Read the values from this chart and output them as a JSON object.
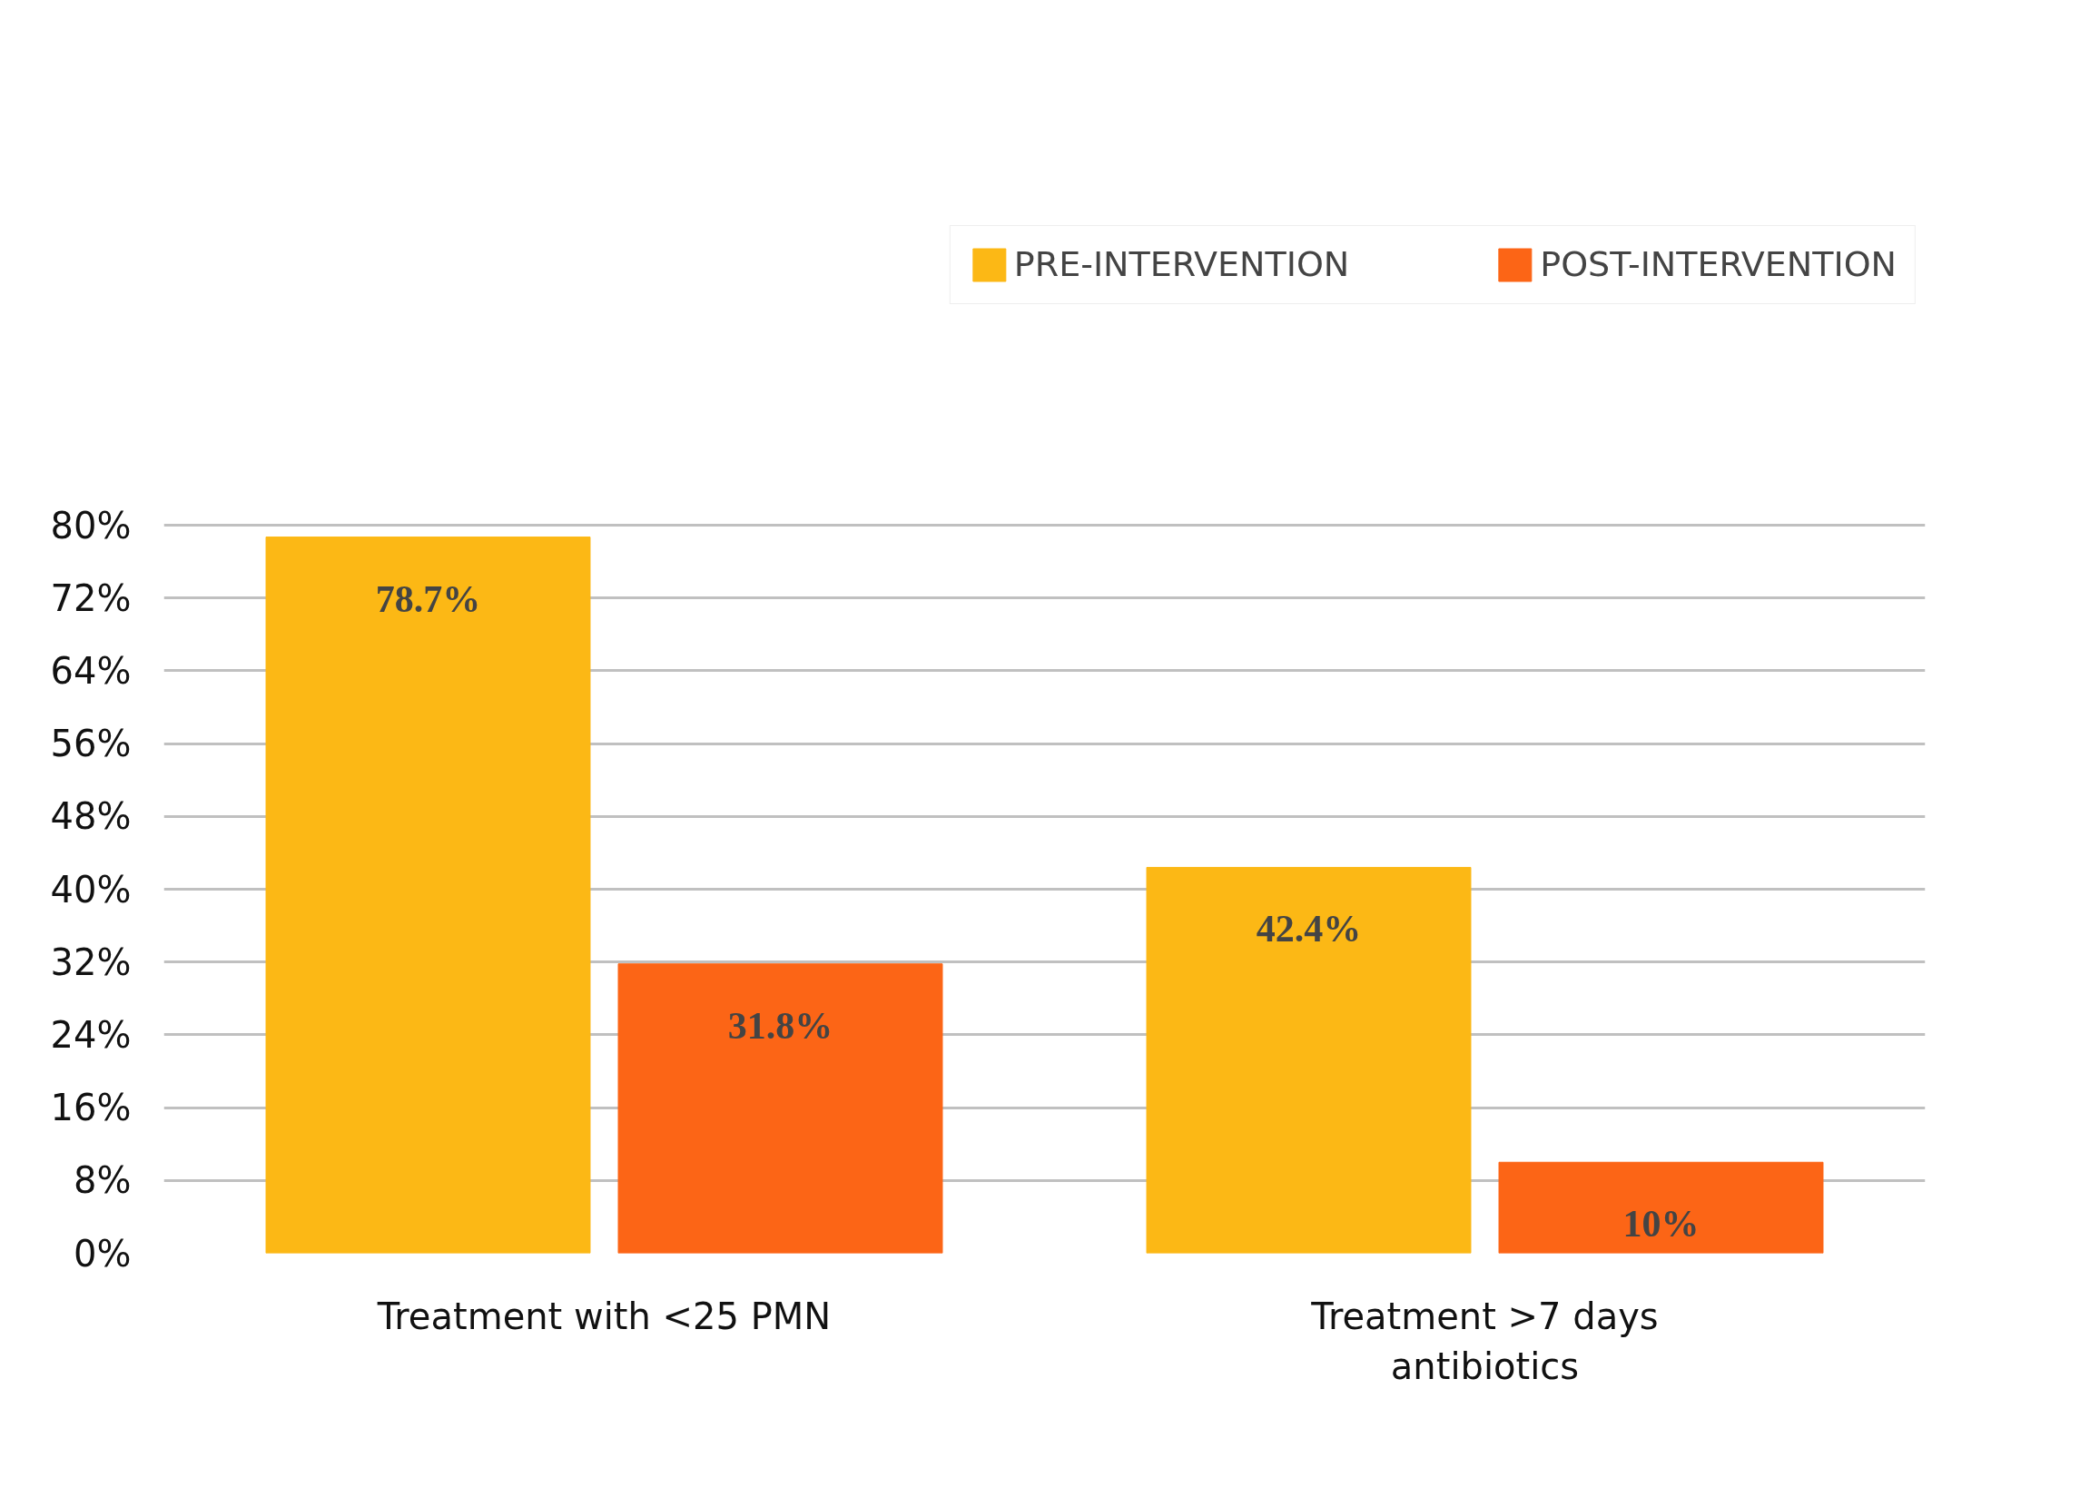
{
  "chart_data": {
    "type": "bar",
    "categories": [
      "Treatment with <25 PMN",
      "Treatment >7 days\nantibiotics"
    ],
    "series": [
      {
        "name": "PRE-INTERVENTION",
        "color": "#fcb815",
        "values": [
          78.7,
          42.4
        ]
      },
      {
        "name": "POST-INTERVENTION",
        "color": "#fc6516",
        "values": [
          31.8,
          10
        ]
      }
    ],
    "value_labels": [
      [
        "78.7%",
        "42.4%"
      ],
      [
        "31.8%",
        "10%"
      ]
    ],
    "ylim": [
      0,
      80
    ],
    "yticks": [
      {
        "value": 0,
        "label": "0%"
      },
      {
        "value": 8,
        "label": "8%"
      },
      {
        "value": 16,
        "label": "16%"
      },
      {
        "value": 24,
        "label": "24%"
      },
      {
        "value": 32,
        "label": "32%"
      },
      {
        "value": 40,
        "label": "40%"
      },
      {
        "value": 48,
        "label": "48%"
      },
      {
        "value": 56,
        "label": "56%"
      },
      {
        "value": 64,
        "label": "64%"
      },
      {
        "value": 72,
        "label": "72%"
      },
      {
        "value": 80,
        "label": "80%"
      }
    ],
    "grid": "y",
    "legend": "top"
  }
}
